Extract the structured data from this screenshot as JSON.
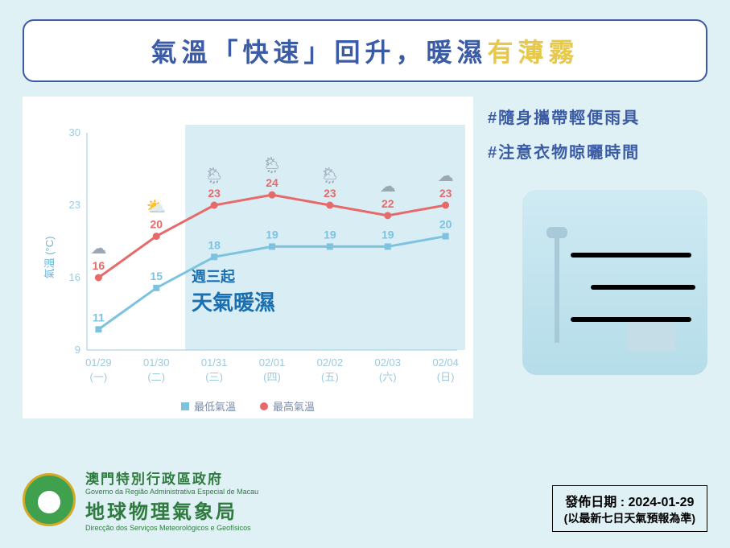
{
  "title": {
    "part1": "氣溫「快速」回升，暖濕",
    "highlight": "有薄霧"
  },
  "tips": [
    "#隨身攜帶輕便雨具",
    "#注意衣物晾曬時間"
  ],
  "chart": {
    "type": "line",
    "ylabel": "氣溫 (°C)",
    "ylim": [
      9,
      30
    ],
    "yticks": [
      9,
      16,
      23,
      30
    ],
    "dates": [
      "01/29",
      "01/30",
      "01/31",
      "02/01",
      "02/02",
      "02/03",
      "02/04"
    ],
    "weekdays": [
      "(一)",
      "(二)",
      "(三)",
      "(四)",
      "(五)",
      "(六)",
      "(日)"
    ],
    "low": {
      "label": "最低氣溫",
      "values": [
        11,
        15,
        18,
        19,
        19,
        19,
        20
      ],
      "color": "#7dc3e0",
      "marker": "square"
    },
    "high": {
      "label": "最高氣溫",
      "values": [
        16,
        20,
        23,
        24,
        23,
        22,
        23
      ],
      "color": "#e66a6a",
      "marker": "circle"
    },
    "shade_from_index": 2,
    "shade_color": "#d9edf5",
    "background_color": "#ffffff",
    "axis_color": "#9ccade",
    "tick_fontsize": 13,
    "value_fontsize": 14,
    "line_width": 3,
    "marker_size": 8,
    "annotation": {
      "line1": "週三起",
      "line2": "天氣暖濕"
    },
    "weather_icons": [
      "rain",
      "suncloud",
      "suncloudrain",
      "suncloudrain",
      "suncloudrain",
      "rain",
      "rain"
    ]
  },
  "org": {
    "zh1": "澳門特別行政區政府",
    "pt1": "Governo da Região Administrativa Especial de Macau",
    "zh2": "地球物理氣象局",
    "pt2": "Direcção dos Serviços Meteorológicos e Geofísicos"
  },
  "publish": {
    "label": "發佈日期 : 2024-01-29",
    "note": "(以最新七日天氣預報為準)"
  },
  "colors": {
    "page_bg": "#dff1f5",
    "title_text": "#3b5ba5",
    "title_highlight": "#e6c84c",
    "tip_text": "#3b5ba5",
    "org_text": "#2f7a3f"
  }
}
